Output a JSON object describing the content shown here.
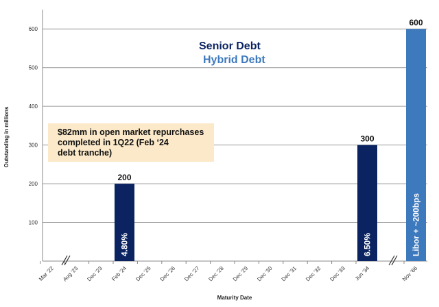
{
  "chart_data": {
    "type": "bar",
    "xlabel": "Maturity Date",
    "ylabel": "Outstanding in millions",
    "ylim": [
      0,
      650
    ],
    "yticks": [
      100,
      200,
      300,
      400,
      500,
      600
    ],
    "grid": true,
    "categories": [
      "Mar '22",
      "Aug '23",
      "Dec '23",
      "Feb '24",
      "Dec '25",
      "Dec '26",
      "Dec '27",
      "Dec '28",
      "Dec '29",
      "Dec '30",
      "Dec '31",
      "Dec '32",
      "Dec '33",
      "Jun '34",
      "Nov '66"
    ],
    "axis_breaks_after": [
      "Mar '22",
      "Jun '34"
    ],
    "series": [
      {
        "name": "Senior Debt",
        "color": "#0b2461",
        "values": [
          0,
          0,
          0,
          200,
          0,
          0,
          0,
          0,
          0,
          0,
          0,
          0,
          0,
          300,
          0
        ],
        "bar_labels": {
          "Feb '24": "4.80%",
          "Jun '34": "6.50%"
        }
      },
      {
        "name": "Hybrid Debt",
        "color": "#3d79bd",
        "values": [
          0,
          0,
          0,
          0,
          0,
          0,
          0,
          0,
          0,
          0,
          0,
          0,
          0,
          0,
          600
        ],
        "bar_labels": {
          "Nov '66": "Libor + ~200bps"
        }
      }
    ],
    "legend_placement": "top-center",
    "annotation": "$82mm in open market repurchases completed in 1Q22 (Feb ‘24 debt tranche)",
    "annotation_lines": [
      "$82mm in open market repurchases",
      "completed in 1Q22 (Feb ‘24",
      "debt tranche)"
    ],
    "annotation_fill": "#fbe9c9"
  }
}
